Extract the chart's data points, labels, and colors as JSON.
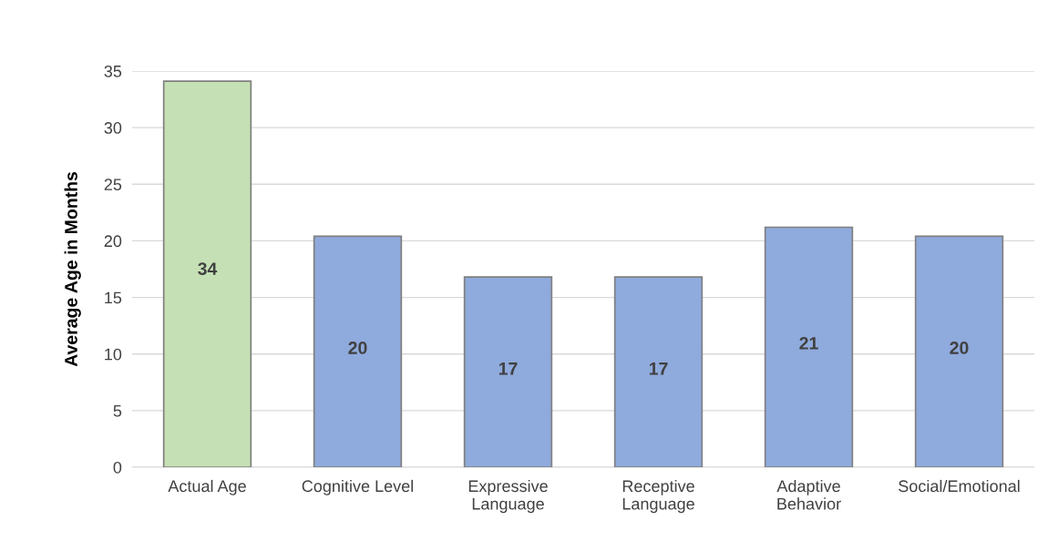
{
  "chart_data": {
    "type": "bar",
    "ylabel": "Average Age in Months",
    "categories": [
      "Actual Age",
      "Cognitive Level",
      "Expressive Language",
      "Receptive Language",
      "Adaptive Behavior",
      "Social/Emotional"
    ],
    "values": [
      34.1,
      20.4,
      16.8,
      16.8,
      21.2,
      20.4
    ],
    "colors": [
      "#c5e0b4",
      "#8faadc",
      "#8faadc",
      "#8faadc",
      "#8faadc",
      "#8faadc"
    ],
    "value_labels": [
      "34",
      "20",
      "17",
      "17",
      "21",
      "20"
    ],
    "ylim": [
      0,
      35
    ],
    "yticks": [
      0,
      5,
      10,
      15,
      20,
      25,
      30,
      35
    ],
    "grid": "y",
    "legend": false
  }
}
